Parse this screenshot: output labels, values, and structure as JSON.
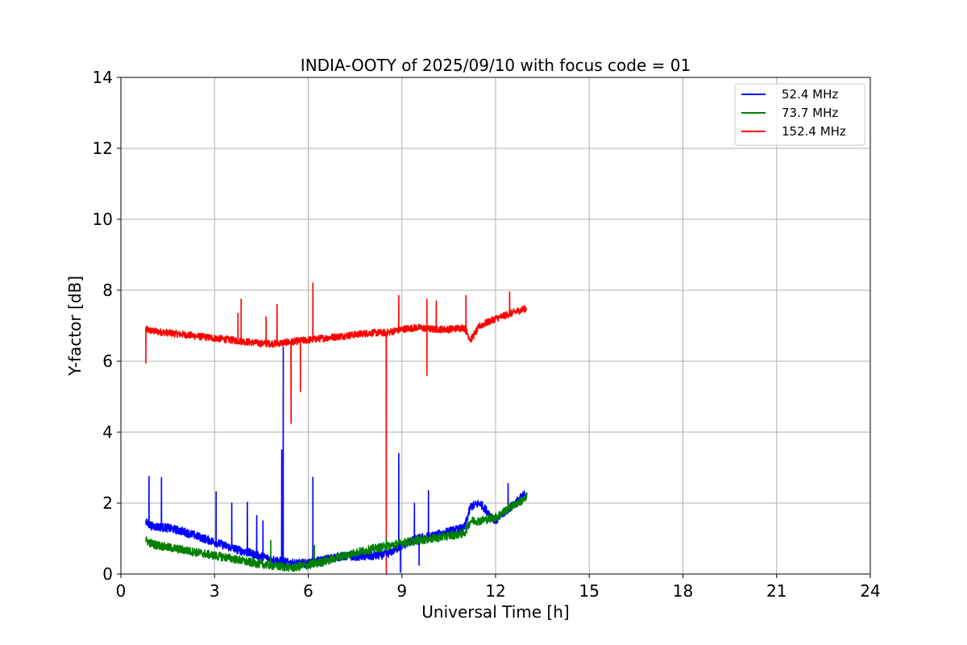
{
  "chart_data": {
    "type": "line",
    "title": "INDIA-OOTY of 2025/09/10 with focus code = 01",
    "xlabel": "Universal Time [h]",
    "ylabel": "Y-factor [dB]",
    "xlim": [
      0,
      24
    ],
    "ylim": [
      0,
      14
    ],
    "xticks": [
      0,
      3,
      6,
      9,
      12,
      15,
      18,
      21,
      24
    ],
    "yticks": [
      0,
      2,
      4,
      6,
      8,
      10,
      12,
      14
    ],
    "grid": true,
    "legend_position": "top-right",
    "series": [
      {
        "name": "52.4 MHz",
        "legend_label": "  52.4 MHz",
        "color": "#0000ff",
        "x": [
          0.8,
          1.0,
          1.5,
          2.0,
          2.5,
          3.0,
          3.5,
          4.0,
          4.5,
          5.0,
          5.5,
          6.0,
          6.5,
          7.0,
          7.5,
          8.0,
          8.5,
          9.0,
          9.5,
          10.0,
          10.5,
          11.0,
          11.2,
          11.5,
          12.0,
          12.5,
          13.0
        ],
        "values": [
          1.45,
          1.35,
          1.3,
          1.2,
          1.05,
          0.9,
          0.75,
          0.62,
          0.5,
          0.38,
          0.3,
          0.3,
          0.4,
          0.5,
          0.5,
          0.5,
          0.55,
          0.8,
          1.0,
          1.08,
          1.2,
          1.3,
          1.9,
          2.0,
          1.5,
          1.9,
          2.3
        ],
        "spikes": [
          [
            0.9,
            2.75
          ],
          [
            1.3,
            2.72
          ],
          [
            3.05,
            2.32
          ],
          [
            3.55,
            2.0
          ],
          [
            4.05,
            2.02
          ],
          [
            4.35,
            1.65
          ],
          [
            4.55,
            1.5
          ],
          [
            5.15,
            3.5
          ],
          [
            5.2,
            6.4
          ],
          [
            6.15,
            2.73
          ],
          [
            8.9,
            3.4
          ],
          [
            9.4,
            2.0
          ],
          [
            9.85,
            2.35
          ],
          [
            12.4,
            2.55
          ]
        ],
        "dips": [
          [
            8.95,
            0.05
          ],
          [
            9.55,
            0.25
          ]
        ]
      },
      {
        "name": "73.7 MHz",
        "legend_label": "  73.7 MHz",
        "color": "#008000",
        "x": [
          0.8,
          1.0,
          1.5,
          2.0,
          2.5,
          3.0,
          3.5,
          4.0,
          4.5,
          5.0,
          5.5,
          6.0,
          6.5,
          7.0,
          7.5,
          8.0,
          8.5,
          9.0,
          9.5,
          10.0,
          10.5,
          11.0,
          11.2,
          11.5,
          12.0,
          12.5,
          13.0
        ],
        "values": [
          0.95,
          0.85,
          0.75,
          0.68,
          0.6,
          0.52,
          0.45,
          0.35,
          0.28,
          0.22,
          0.18,
          0.25,
          0.35,
          0.48,
          0.6,
          0.7,
          0.78,
          0.88,
          0.95,
          1.0,
          1.08,
          1.15,
          1.5,
          1.5,
          1.6,
          1.9,
          2.15
        ],
        "spikes": [
          [
            4.8,
            0.95
          ],
          [
            6.2,
            0.8
          ],
          [
            8.5,
            1.0
          ]
        ],
        "dips": []
      },
      {
        "name": "152.4 MHz",
        "legend_label": "152.4 MHz",
        "color": "#ff0000",
        "x": [
          0.8,
          1.0,
          1.5,
          2.0,
          2.5,
          3.0,
          3.5,
          4.0,
          4.5,
          5.0,
          5.5,
          6.0,
          6.5,
          7.0,
          7.5,
          8.0,
          8.5,
          9.0,
          9.5,
          10.0,
          10.5,
          11.0,
          11.2,
          11.5,
          12.0,
          12.5,
          13.0
        ],
        "values": [
          6.9,
          6.85,
          6.8,
          6.75,
          6.7,
          6.65,
          6.6,
          6.55,
          6.5,
          6.5,
          6.55,
          6.6,
          6.65,
          6.7,
          6.75,
          6.8,
          6.8,
          6.9,
          6.95,
          6.9,
          6.9,
          6.95,
          6.6,
          7.0,
          7.2,
          7.35,
          7.5
        ],
        "spikes": [
          [
            3.75,
            7.35
          ],
          [
            3.85,
            7.75
          ],
          [
            4.65,
            7.25
          ],
          [
            5.0,
            7.6
          ],
          [
            6.15,
            8.2
          ],
          [
            8.9,
            7.85
          ],
          [
            9.8,
            7.75
          ],
          [
            10.1,
            7.7
          ],
          [
            11.05,
            7.85
          ],
          [
            12.45,
            7.95
          ]
        ],
        "dips": [
          [
            0.8,
            5.95
          ],
          [
            5.45,
            4.25
          ],
          [
            5.75,
            5.15
          ],
          [
            8.5,
            0.0
          ],
          [
            9.8,
            5.6
          ]
        ]
      }
    ]
  }
}
